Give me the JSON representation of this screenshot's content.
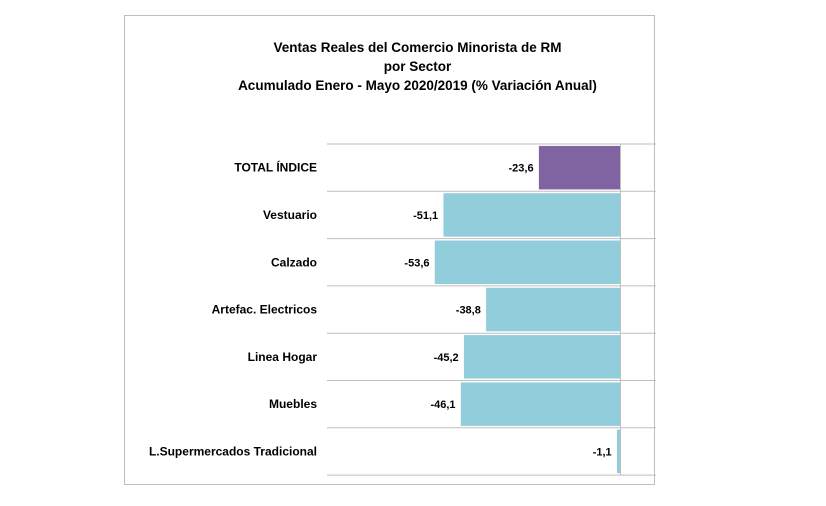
{
  "chart_data": {
    "type": "bar",
    "orientation": "horizontal",
    "title": [
      "Ventas Reales del Comercio Minorista de RM",
      "por Sector",
      "Acumulado Enero - Mayo 2020/2019 (% Variación Anual)"
    ],
    "categories": [
      "TOTAL ÍNDICE",
      "Vestuario",
      "Calzado",
      "Artefac. Electricos",
      "Linea Hogar",
      "Muebles",
      "L.Supermercados Tradicional"
    ],
    "values": [
      -23.6,
      -51.1,
      -53.6,
      -38.8,
      -45.2,
      -46.1,
      -1.1
    ],
    "value_labels": [
      "-23,6",
      "-51,1",
      "-53,6",
      "-38,8",
      "-45,2",
      "-46,1",
      "-1,1"
    ],
    "colors": {
      "total": "#8064a2",
      "sector": "#92cddc",
      "bar_border": "#ffffff",
      "grid": "#bfbfbf"
    },
    "grid": "horizontal",
    "legend": "none"
  }
}
